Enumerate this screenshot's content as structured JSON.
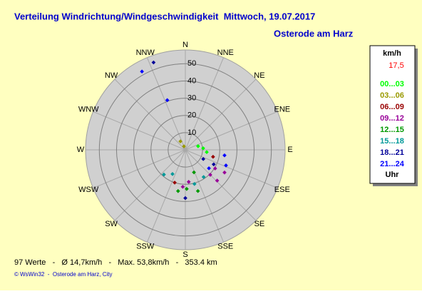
{
  "chart_data": {
    "type": "scatter",
    "title": "Verteilung Windrichtung/Windgeschwindigkeit  Mittwoch, 19.07.2017",
    "subtitle": "Osterode am Harz",
    "polar": true,
    "direction_labels": [
      "N",
      "NNE",
      "NE",
      "ENE",
      "E",
      "ESE",
      "SE",
      "SSE",
      "S",
      "SSW",
      "SW",
      "WSW",
      "W",
      "WNW",
      "NW",
      "NNW"
    ],
    "ylim": [
      0,
      58
    ],
    "yticks": [
      10,
      20,
      30,
      40,
      50
    ],
    "legend_title": "km/h",
    "legend_value": "17,5",
    "legend_unit": "Uhr",
    "series": [
      {
        "name": "00...03",
        "color": "#00ff00",
        "x": [
          74,
          85,
          96
        ],
        "values": [
          7.7,
          10.4,
          12.5
        ]
      },
      {
        "name": "03...06",
        "color": "#999900",
        "x": [
          330,
          338
        ],
        "values": [
          5.7,
          2.2
        ]
      },
      {
        "name": "06...09",
        "color": "#990000",
        "x": [
          104,
          198
        ],
        "values": [
          16.6,
          20
        ]
      },
      {
        "name": "09...12",
        "color": "#990099",
        "x": [
          174,
          184,
          122,
          120,
          135,
          134
        ],
        "values": [
          18.7,
          21.5,
          20.4,
          26.3,
          20.5,
          25.7
        ]
      },
      {
        "name": "12...15",
        "color": "#009900",
        "x": [
          178,
          163,
          190,
          159
        ],
        "values": [
          22.7,
          25,
          24.3,
          14
        ]
      },
      {
        "name": "15...18",
        "color": "#009999",
        "x": [
          165,
          208,
          221,
          146
        ],
        "values": [
          20.5,
          15.9,
          19,
          19
        ]
      },
      {
        "name": "18...21",
        "color": "#000099",
        "x": [
          340,
          117,
          117,
          180
        ],
        "values": [
          54,
          11.7,
          18.5,
          28
        ]
      },
      {
        "name": "21...24",
        "color": "#0000ff",
        "x": [
          331,
          340,
          98,
          111,
          128
        ],
        "values": [
          52,
          30.7,
          23,
          25.3,
          17.4
        ]
      }
    ],
    "footer": "97 Werte   -   Ø 14,7km/h   -   Max. 53,8km/h   -   353.4 km",
    "credit": "© WsWin32  -  Osterode am Harz, City"
  }
}
